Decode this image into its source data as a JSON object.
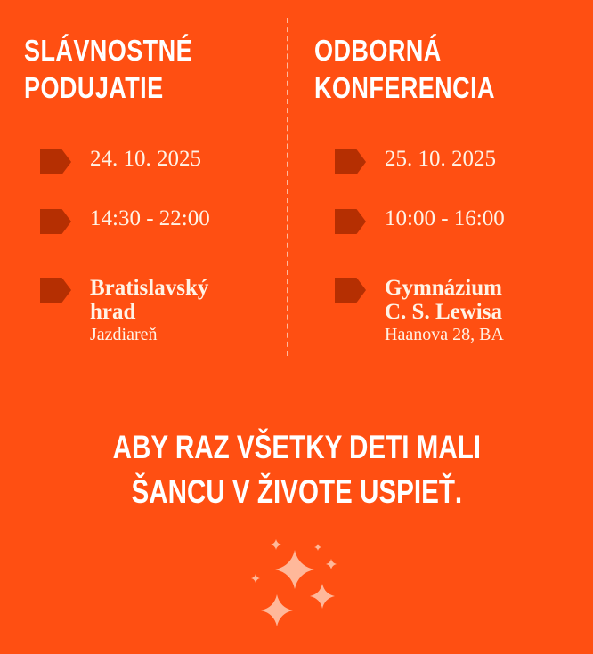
{
  "events": [
    {
      "title_lines": [
        "SLÁVNOSTNÉ",
        "PODUJATIE"
      ],
      "date": "24. 10. 2025",
      "time": "14:30 - 22:00",
      "venue_lines": [
        "Bratislavský",
        "hrad"
      ],
      "venue_detail": "Jazdiareň"
    },
    {
      "title_lines": [
        "ODBORNÁ",
        "KONFERENCIA"
      ],
      "date": "25. 10. 2025",
      "time": "10:00 - 16:00",
      "venue_lines": [
        "Gymnázium",
        "C. S. Lewisa"
      ],
      "venue_detail": "Haanova 28, BA"
    }
  ],
  "slogan_lines": [
    "ABY RAZ VŠETKY DETI MALI",
    "ŠANCU V ŽIVOTE USPIEŤ."
  ],
  "colors": {
    "background": "#FF4F12",
    "marker": "#B52F02",
    "text": "#FFF3E6",
    "sparkles": "#FFB89A"
  },
  "icons": {
    "marker": "arrow-tag-icon",
    "decoration": "sparkles-icon"
  }
}
